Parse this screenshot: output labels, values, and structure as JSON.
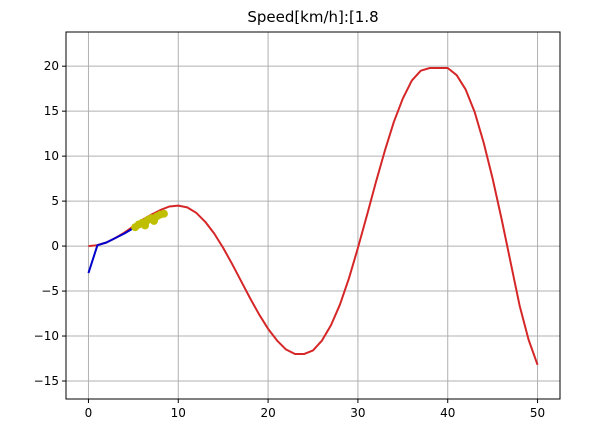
{
  "chart_data": {
    "type": "line",
    "title": "Speed[km/h]:[1.8",
    "xlabel": "",
    "ylabel": "",
    "xlim": [
      -2.5,
      52.5
    ],
    "ylim": [
      -17.0,
      23.8
    ],
    "xticks": [
      0,
      10,
      20,
      30,
      40,
      50
    ],
    "yticks": [
      -15,
      -10,
      -5,
      0,
      5,
      10,
      15,
      20
    ],
    "grid": true,
    "series": [
      {
        "color": "#d62728",
        "x": [
          0,
          1,
          2,
          3,
          4,
          5,
          6,
          7,
          8,
          9,
          10,
          11,
          12,
          13,
          14,
          15,
          16,
          17,
          18,
          19,
          20,
          21,
          22,
          23,
          24,
          25,
          26,
          27,
          28,
          29,
          30,
          31,
          32,
          33,
          34,
          35,
          36,
          37,
          38,
          39,
          40,
          41,
          42,
          43,
          44,
          45,
          46,
          47,
          48,
          49,
          50
        ],
        "y": [
          0.0,
          0.1,
          0.4,
          0.9,
          1.5,
          2.2,
          2.9,
          3.5,
          4.0,
          4.4,
          4.5,
          4.3,
          3.7,
          2.7,
          1.4,
          -0.2,
          -2.0,
          -3.9,
          -5.8,
          -7.6,
          -9.2,
          -10.5,
          -11.5,
          -12.0,
          -12.0,
          -11.6,
          -10.5,
          -8.8,
          -6.5,
          -3.6,
          -0.2,
          3.4,
          7.1,
          10.6,
          13.8,
          16.4,
          18.4,
          19.5,
          19.8,
          19.8,
          19.8,
          19.0,
          17.4,
          14.9,
          11.5,
          7.5,
          3.0,
          -1.8,
          -6.6,
          -10.4,
          -13.2
        ]
      },
      {
        "color": "#0000cc",
        "x": [
          0,
          1,
          2,
          3,
          4,
          5
        ],
        "y": [
          -3.0,
          0.1,
          0.4,
          0.9,
          1.4,
          2.0
        ]
      },
      {
        "color": "#bfbf00",
        "x": [
          5.2,
          5.6,
          6.0,
          6.3,
          6.6,
          7.0,
          7.3,
          7.6,
          8.0,
          8.4
        ],
        "y": [
          2.1,
          2.4,
          2.6,
          2.3,
          2.9,
          3.1,
          2.8,
          3.3,
          3.5,
          3.6
        ]
      }
    ]
  }
}
